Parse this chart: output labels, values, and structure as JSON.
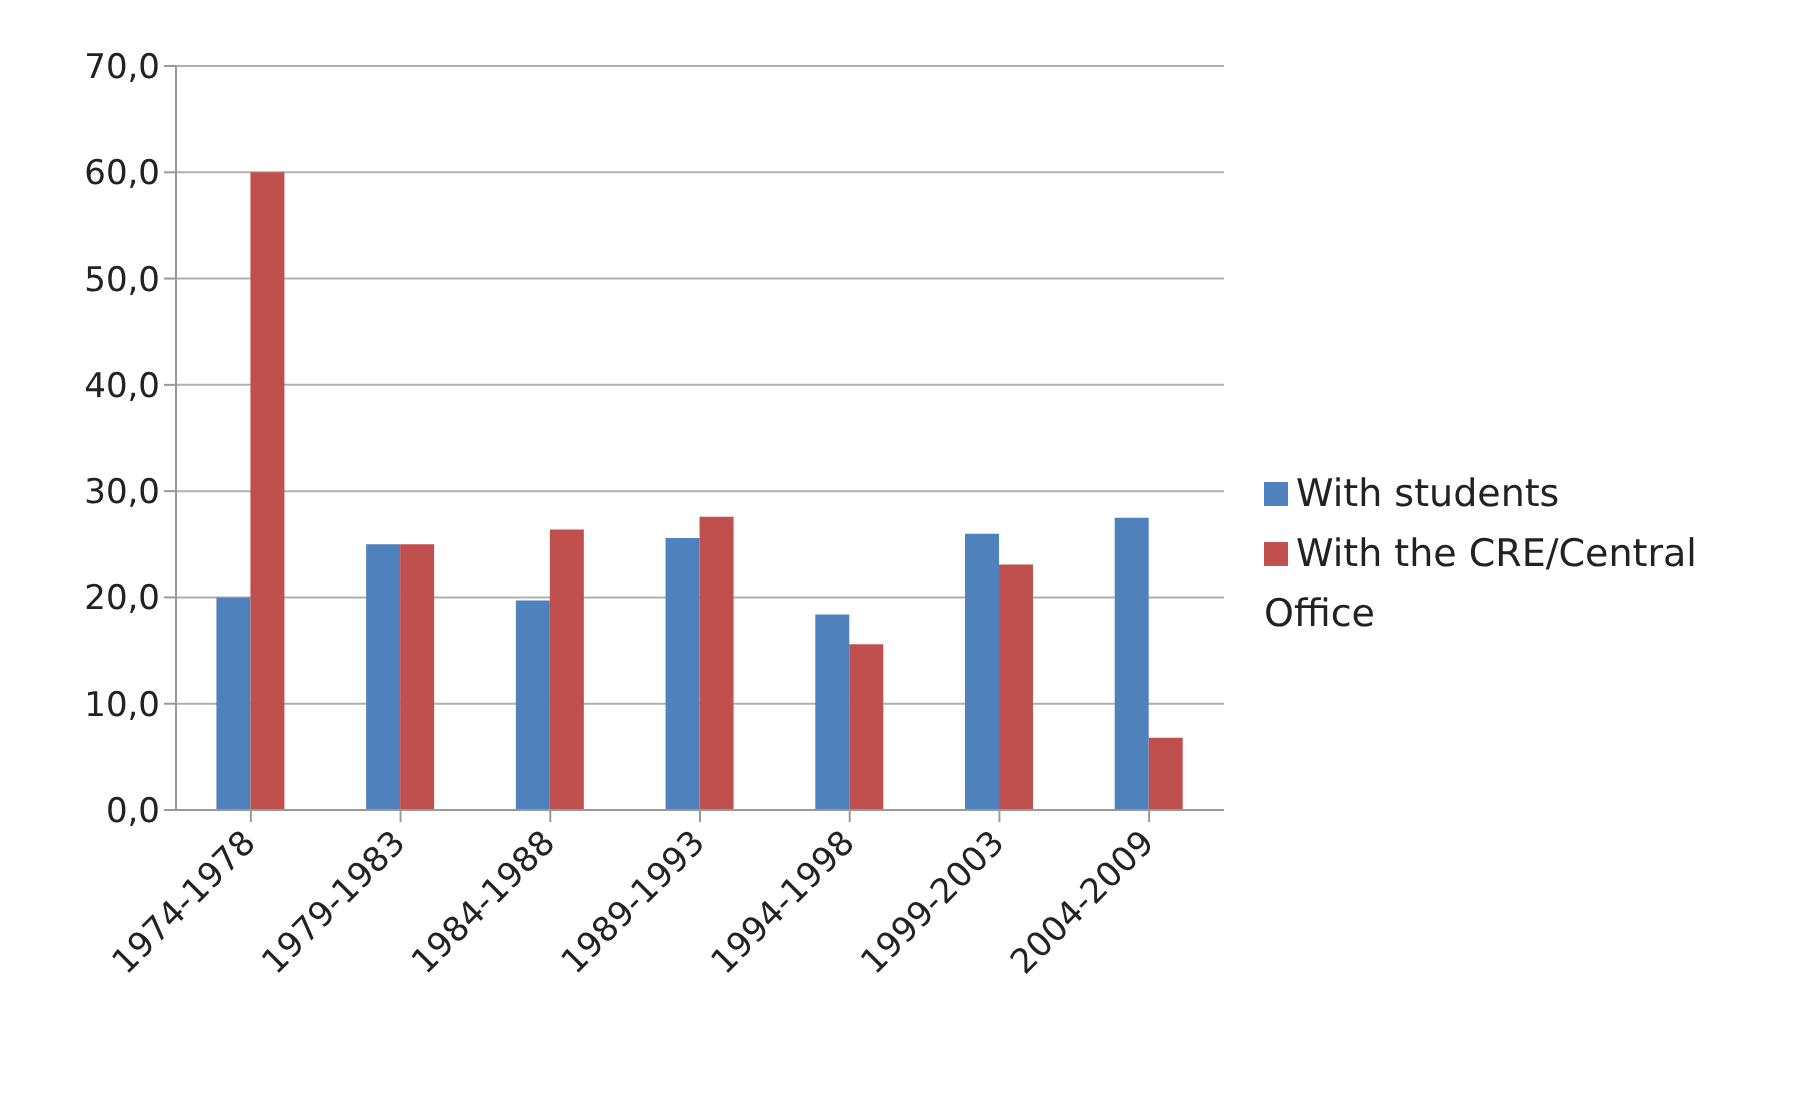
{
  "chart_data": {
    "type": "bar",
    "categories": [
      "1974-1978",
      "1979-1983",
      "1984-1988",
      "1989-1993",
      "1994-1998",
      "1999-2003",
      "2004-2009"
    ],
    "series": [
      {
        "name": "With students",
        "color": "#4f81bd",
        "values": [
          20.0,
          25.0,
          19.7,
          25.6,
          18.4,
          26.0,
          27.5
        ]
      },
      {
        "name": "With the CRE/Central Office",
        "color": "#c0504d",
        "values": [
          60.0,
          25.0,
          26.4,
          27.6,
          15.6,
          23.1,
          6.8
        ]
      }
    ],
    "ylim": [
      0,
      70
    ],
    "yticks": [
      {
        "value": 0,
        "label": "0,0"
      },
      {
        "value": 10,
        "label": "10,0"
      },
      {
        "value": 20,
        "label": "20,0"
      },
      {
        "value": 30,
        "label": "30,0"
      },
      {
        "value": 40,
        "label": "40,0"
      },
      {
        "value": 50,
        "label": "50,0"
      },
      {
        "value": 60,
        "label": "60,0"
      },
      {
        "value": 70,
        "label": "70,0"
      }
    ],
    "grid": "y",
    "legend": "right"
  }
}
